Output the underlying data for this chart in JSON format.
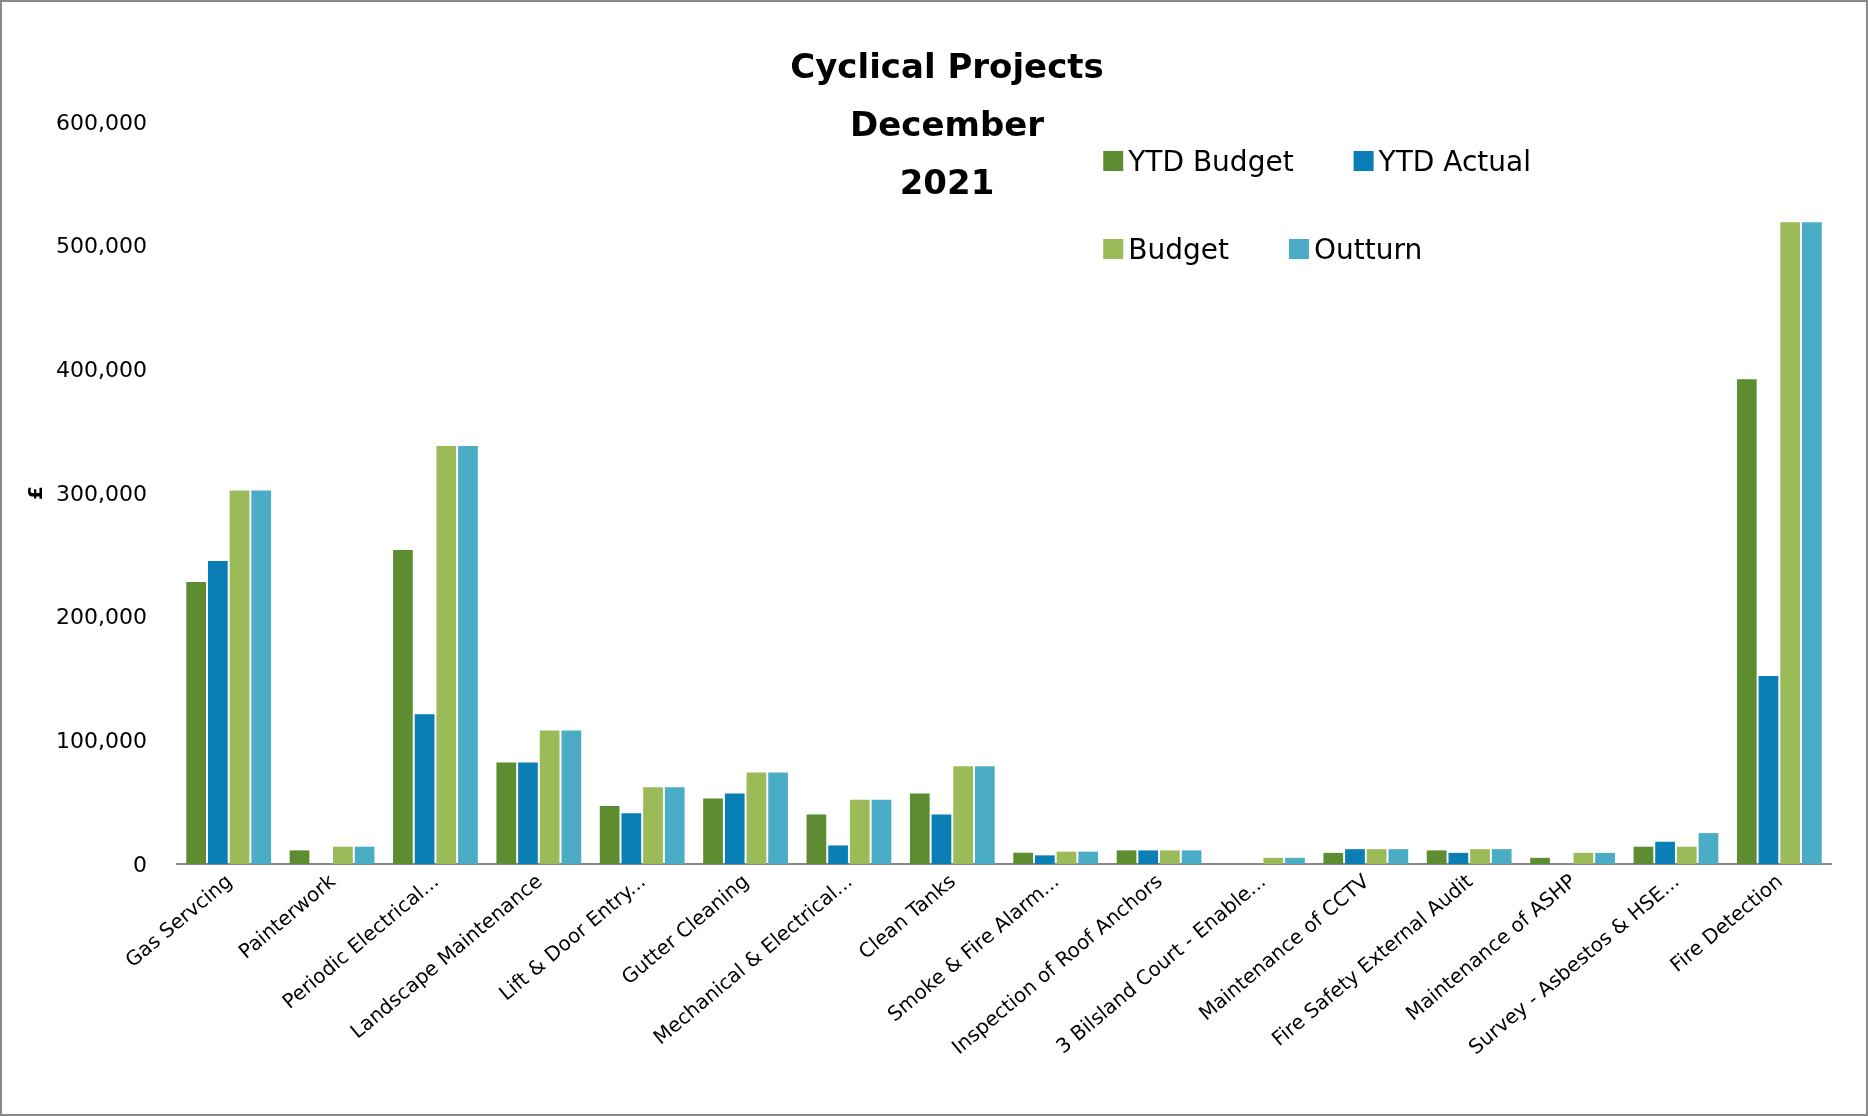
{
  "chart_data": {
    "type": "bar",
    "title": "Cyclical Projects\nDecember\n2021",
    "ylabel": "£",
    "categories": [
      "Gas Servcing",
      "Painterwork",
      "Periodic Electrical...",
      "Landscape Maintenance",
      "Lift & Door Entry...",
      "Gutter Cleaning",
      "Mechanical & Electrical...",
      "Clean Tanks",
      "Smoke & Fire Alarm...",
      "Inspection of Roof Anchors",
      "3 Bilsland Court - Enable...",
      "Maintenance of CCTV",
      "Fire Safety External Audit",
      "Maintenance of ASHP",
      "Survey - Asbestos & HSE...",
      "Fire Detection"
    ],
    "series": [
      {
        "name": "YTD Budget",
        "color": "#5e8c31",
        "values": [
          228000,
          11000,
          254000,
          82000,
          47000,
          53000,
          40000,
          57000,
          9000,
          11000,
          null,
          9000,
          11000,
          5000,
          14000,
          392000
        ]
      },
      {
        "name": "YTD Actual",
        "color": "#0a7fb5",
        "values": [
          245000,
          null,
          121000,
          82000,
          41000,
          57000,
          15000,
          40000,
          7000,
          11000,
          null,
          12000,
          9000,
          null,
          18000,
          152000
        ]
      },
      {
        "name": "Budget",
        "color": "#9bbb59",
        "values": [
          302000,
          14000,
          338000,
          108000,
          62000,
          74000,
          52000,
          79000,
          10000,
          11000,
          5000,
          12000,
          12000,
          9000,
          14000,
          519000
        ]
      },
      {
        "name": "Outturn",
        "color": "#4bacc6",
        "values": [
          302000,
          14000,
          338000,
          108000,
          62000,
          74000,
          52000,
          79000,
          10000,
          11000,
          5000,
          12000,
          12000,
          9000,
          25000,
          519000
        ]
      }
    ],
    "ylim": [
      0,
      600000
    ],
    "yticks": [
      {
        "value": 0,
        "label": "0"
      },
      {
        "value": 100000,
        "label": "100,000"
      },
      {
        "value": 200000,
        "label": "200,000"
      },
      {
        "value": 300000,
        "label": "300,000"
      },
      {
        "value": 400000,
        "label": "400,000"
      },
      {
        "value": 500000,
        "label": "500,000"
      },
      {
        "value": 600000,
        "label": "600,000"
      }
    ],
    "grid": false,
    "legend": "top right"
  }
}
